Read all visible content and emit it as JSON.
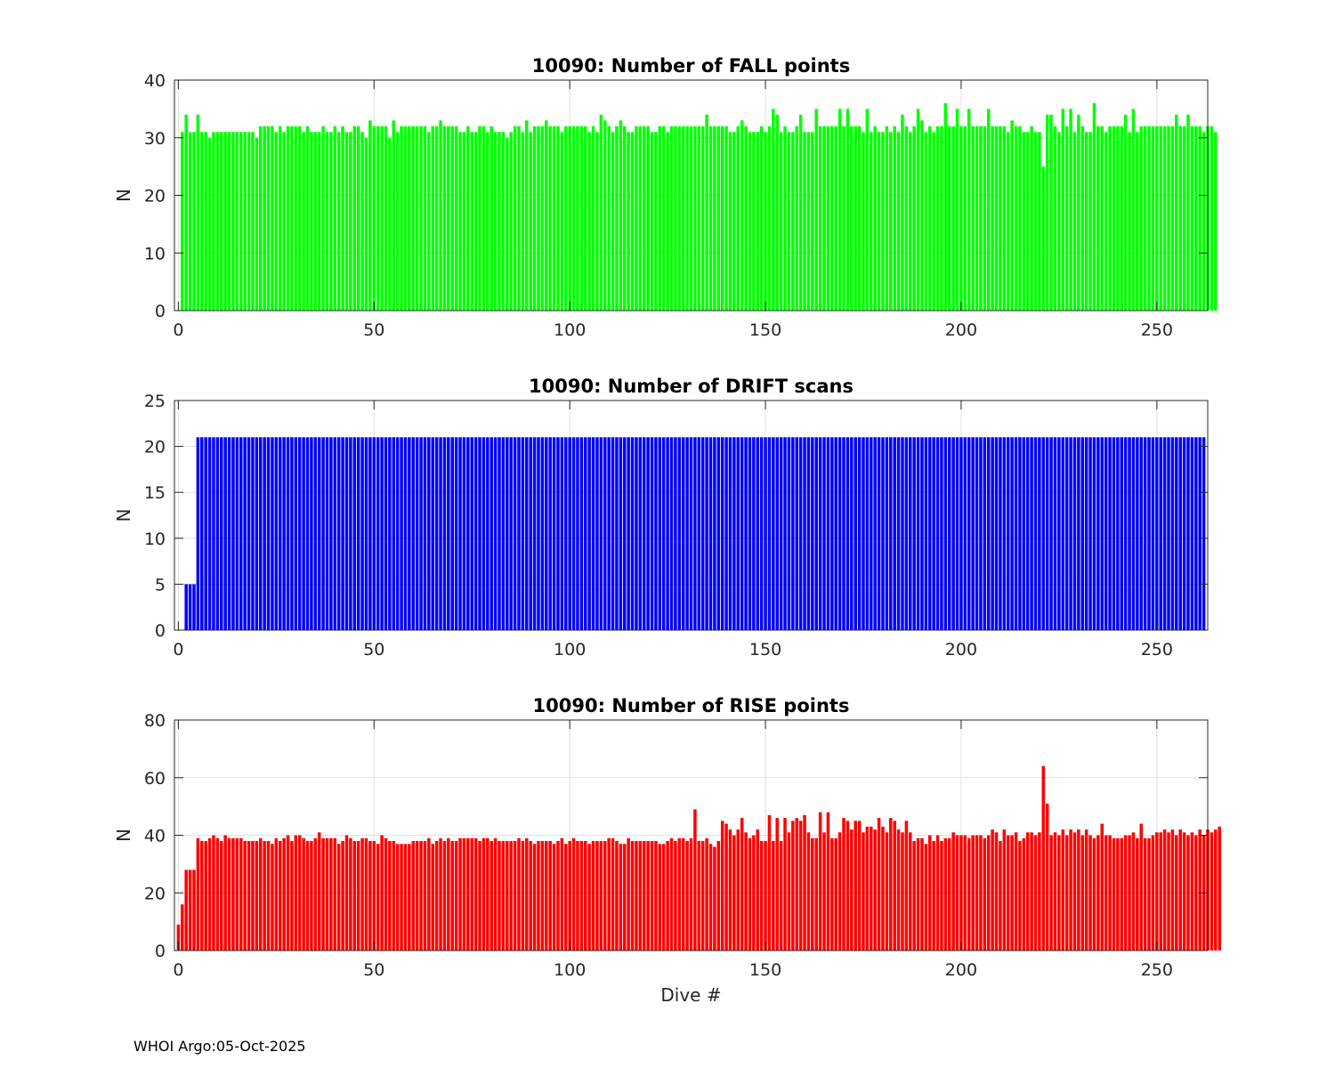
{
  "footer": "WHOI Argo:05-Oct-2025",
  "chart_data": [
    {
      "type": "bar",
      "title": "10090: Number of FALL points",
      "xlabel": "",
      "ylabel": "N",
      "xlim": [
        -1,
        263
      ],
      "ylim": [
        0,
        40
      ],
      "xticks": [
        0,
        50,
        100,
        150,
        200,
        250
      ],
      "yticks": [
        0,
        10,
        20,
        30,
        40
      ],
      "grid": true,
      "color": "#00ff00",
      "x_start": 1,
      "values": [
        31,
        34,
        31,
        31,
        34,
        31,
        31,
        30,
        31,
        31,
        31,
        31,
        31,
        31,
        31,
        31,
        31,
        31,
        31,
        30,
        32,
        32,
        32,
        32,
        31,
        32,
        31,
        32,
        32,
        32,
        32,
        31,
        32,
        31,
        31,
        31,
        32,
        31,
        31,
        32,
        31,
        32,
        31,
        31,
        32,
        32,
        31,
        30,
        33,
        32,
        32,
        32,
        32,
        30,
        33,
        31,
        32,
        32,
        32,
        32,
        32,
        32,
        32,
        31,
        32,
        32,
        33,
        32,
        32,
        32,
        32,
        31,
        31,
        32,
        31,
        31,
        32,
        32,
        31,
        32,
        31,
        31,
        31,
        30,
        31,
        32,
        32,
        31,
        33,
        31,
        32,
        32,
        32,
        33,
        32,
        32,
        32,
        31,
        32,
        32,
        32,
        32,
        32,
        32,
        31,
        32,
        31,
        34,
        33,
        32,
        31,
        32,
        33,
        32,
        31,
        31,
        32,
        32,
        32,
        32,
        31,
        31,
        32,
        32,
        31,
        32,
        32,
        32,
        32,
        32,
        32,
        32,
        32,
        32,
        34,
        32,
        32,
        32,
        32,
        32,
        31,
        31,
        32,
        33,
        32,
        31,
        31,
        31,
        32,
        31,
        32,
        35,
        34,
        31,
        32,
        31,
        31,
        32,
        34,
        31,
        31,
        31,
        35,
        32,
        32,
        32,
        32,
        32,
        35,
        32,
        35,
        32,
        32,
        32,
        31,
        35,
        31,
        32,
        31,
        31,
        32,
        31,
        32,
        31,
        34,
        32,
        31,
        32,
        35,
        33,
        31,
        32,
        31,
        32,
        32,
        36,
        32,
        32,
        35,
        32,
        32,
        35,
        32,
        32,
        32,
        32,
        35,
        32,
        32,
        32,
        32,
        31,
        33,
        32,
        32,
        31,
        31,
        32,
        31,
        31,
        25,
        34,
        34,
        32,
        31,
        35,
        32,
        35,
        31,
        34,
        32,
        31,
        31,
        36,
        32,
        32,
        31,
        32,
        32,
        32,
        32,
        34,
        31,
        35,
        31,
        32,
        32,
        32,
        32,
        32,
        32,
        32,
        32,
        32,
        34,
        32,
        32,
        34,
        32,
        32,
        32,
        31,
        32,
        32,
        31
      ]
    },
    {
      "type": "bar",
      "title": "10090: Number of DRIFT scans",
      "xlabel": "",
      "ylabel": "N",
      "xlim": [
        -1,
        263
      ],
      "ylim": [
        0,
        25
      ],
      "xticks": [
        0,
        50,
        100,
        150,
        200,
        250
      ],
      "yticks": [
        0,
        5,
        10,
        15,
        20,
        25
      ],
      "grid": true,
      "color": "#0000ff",
      "x_start": 1,
      "values": [
        0,
        5,
        5,
        5,
        21,
        21,
        21,
        21,
        21,
        21,
        21,
        21,
        21,
        21,
        21,
        21,
        21,
        21,
        21,
        21,
        21,
        21,
        21,
        21,
        21,
        21,
        21,
        21,
        21,
        21,
        21,
        21,
        21,
        21,
        21,
        21,
        21,
        21,
        21,
        21,
        21,
        21,
        21,
        21,
        21,
        21,
        21,
        21,
        21,
        21,
        21,
        21,
        21,
        21,
        21,
        21,
        21,
        21,
        21,
        21,
        21,
        21,
        21,
        21,
        21,
        21,
        21,
        21,
        21,
        21,
        21,
        21,
        21,
        21,
        21,
        21,
        21,
        21,
        21,
        21,
        21,
        21,
        21,
        21,
        21,
        21,
        21,
        21,
        21,
        21,
        21,
        21,
        21,
        21,
        21,
        21,
        21,
        21,
        21,
        21,
        21,
        21,
        21,
        21,
        21,
        21,
        21,
        21,
        21,
        21,
        21,
        21,
        21,
        21,
        21,
        21,
        21,
        21,
        21,
        21,
        21,
        21,
        21,
        21,
        21,
        21,
        21,
        21,
        21,
        21,
        21,
        21,
        21,
        21,
        21,
        21,
        21,
        21,
        21,
        21,
        21,
        21,
        21,
        21,
        21,
        21,
        21,
        21,
        21,
        21,
        21,
        21,
        21,
        21,
        21,
        21,
        21,
        21,
        21,
        21,
        21,
        21,
        21,
        21,
        21,
        21,
        21,
        21,
        21,
        21,
        21,
        21,
        21,
        21,
        21,
        21,
        21,
        21,
        21,
        21,
        21,
        21,
        21,
        21,
        21,
        21,
        21,
        21,
        21,
        21,
        21,
        21,
        21,
        21,
        21,
        21,
        21,
        21,
        21,
        21,
        21,
        21,
        21,
        21,
        21,
        21,
        21,
        21,
        21,
        21,
        21,
        21,
        21,
        21,
        21,
        21,
        21,
        21,
        21,
        21,
        21,
        21,
        21,
        21,
        21,
        21,
        21,
        21,
        21,
        21,
        21,
        21,
        21,
        21,
        21,
        21,
        21,
        21,
        21,
        21,
        21,
        21,
        21,
        21,
        21,
        21,
        21,
        21,
        21,
        21,
        21,
        21,
        21,
        21,
        21,
        21,
        21,
        21,
        21,
        21,
        21,
        21
      ]
    },
    {
      "type": "bar",
      "title": "10090: Number of RISE points",
      "xlabel": "Dive #",
      "ylabel": "N",
      "xlim": [
        -1,
        263
      ],
      "ylim": [
        0,
        80
      ],
      "xticks": [
        0,
        50,
        100,
        150,
        200,
        250
      ],
      "yticks": [
        0,
        20,
        40,
        60,
        80
      ],
      "grid": true,
      "color": "#ff0000",
      "x_start": 0,
      "values": [
        9,
        16,
        28,
        28,
        28,
        39,
        38,
        38,
        39,
        40,
        39,
        38,
        40,
        39,
        39,
        39,
        39,
        38,
        38,
        38,
        38,
        39,
        38,
        38,
        37,
        39,
        38,
        39,
        40,
        38,
        40,
        40,
        39,
        38,
        38,
        39,
        41,
        39,
        39,
        39,
        39,
        37,
        38,
        40,
        39,
        38,
        38,
        39,
        39,
        38,
        38,
        37,
        40,
        39,
        38,
        38,
        37,
        37,
        37,
        37,
        38,
        38,
        38,
        38,
        39,
        37,
        38,
        39,
        38,
        39,
        38,
        38,
        39,
        39,
        39,
        39,
        39,
        38,
        39,
        39,
        38,
        39,
        38,
        38,
        38,
        38,
        38,
        39,
        38,
        39,
        38,
        37,
        38,
        38,
        38,
        38,
        37,
        38,
        39,
        37,
        38,
        39,
        38,
        38,
        38,
        37,
        38,
        38,
        38,
        38,
        39,
        39,
        38,
        37,
        37,
        39,
        38,
        38,
        38,
        38,
        38,
        38,
        38,
        37,
        37,
        38,
        39,
        38,
        39,
        39,
        38,
        39,
        49,
        38,
        38,
        39,
        37,
        36,
        38,
        45,
        44,
        42,
        40,
        42,
        46,
        41,
        39,
        40,
        42,
        38,
        38,
        47,
        38,
        46,
        38,
        46,
        41,
        45,
        46,
        45,
        47,
        41,
        39,
        39,
        48,
        41,
        48,
        39,
        39,
        41,
        46,
        45,
        42,
        45,
        45,
        41,
        43,
        43,
        42,
        46,
        43,
        41,
        46,
        45,
        42,
        41,
        45,
        41,
        38,
        39,
        39,
        37,
        40,
        38,
        40,
        38,
        39,
        39,
        41,
        40,
        40,
        40,
        39,
        40,
        40,
        40,
        39,
        40,
        42,
        41,
        38,
        42,
        40,
        40,
        41,
        38,
        39,
        41,
        41,
        40,
        41,
        64,
        51,
        40,
        41,
        40,
        42,
        40,
        42,
        41,
        42,
        40,
        42,
        40,
        39,
        40,
        44,
        40,
        40,
        39,
        39,
        39,
        40,
        40,
        41,
        39,
        44,
        39,
        39,
        40,
        41,
        41,
        42,
        41,
        42,
        40,
        42,
        41,
        40,
        41,
        40,
        42,
        40,
        42,
        41,
        42,
        43
      ]
    }
  ]
}
